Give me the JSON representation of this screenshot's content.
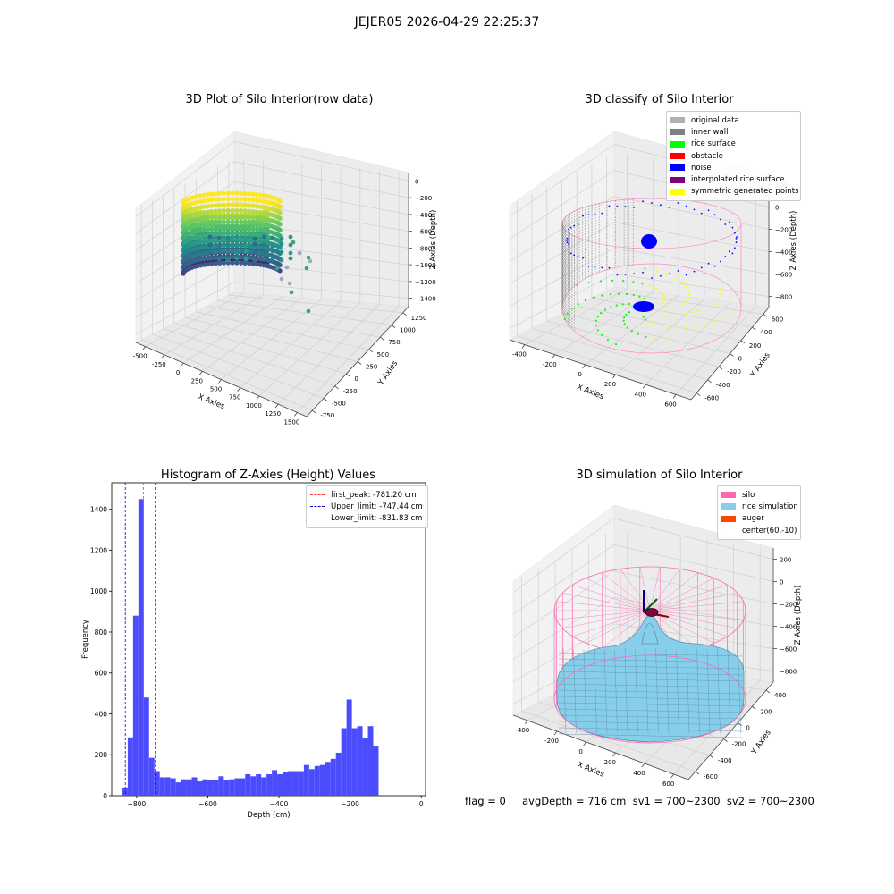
{
  "suptitle": "JEJER05 2026-04-29 22:25:37",
  "status_line": "flag = 0     avgDepth = 716 cm  sv1 = 700~2300  sv2 = 700~2300",
  "chart_data": [
    {
      "type": "scatter",
      "title": "3D Plot of Silo Interior(row data)",
      "xlabel": "X Axies",
      "ylabel": "Y Axies",
      "zlabel": "Z Axies (Depth)",
      "x_ticks": [
        "-500",
        "-250",
        "0",
        "250",
        "500",
        "750",
        "1000",
        "1250",
        "1500"
      ],
      "y_ticks": [
        "-750",
        "-500",
        "-250",
        "0",
        "250",
        "500",
        "750",
        "1000",
        "1250"
      ],
      "z_ticks": [
        "0",
        "−200",
        "−400",
        "−600",
        "−800",
        "−1000",
        "−1200",
        "−1400"
      ],
      "xlim": [
        -600,
        1500
      ],
      "ylim": [
        -750,
        1250
      ],
      "zlim": [
        -1450,
        50
      ],
      "colormap": "viridis",
      "grid": true
    },
    {
      "type": "scatter",
      "title": "3D classify of Silo Interior",
      "xlabel": "X Axies",
      "ylabel": "Y Axies",
      "zlabel": "Z Axies (Depth)",
      "x_ticks": [
        "-400",
        "-200",
        "0",
        "200",
        "400",
        "600"
      ],
      "y_ticks": [
        "-600",
        "-400",
        "-200",
        "0",
        "200",
        "400",
        "600"
      ],
      "z_ticks": [
        "200",
        "0",
        "−200",
        "−400",
        "−600",
        "−800"
      ],
      "xlim": [
        -500,
        650
      ],
      "ylim": [
        -650,
        650
      ],
      "zlim": [
        -900,
        250
      ],
      "legend_position": "top-right",
      "legend": [
        {
          "label": "original data",
          "color": "#b0b0b0"
        },
        {
          "label": "inner wall",
          "color": "#808080"
        },
        {
          "label": "rice surface",
          "color": "#00ff00"
        },
        {
          "label": "obstacle",
          "color": "#ff0000"
        },
        {
          "label": "noise",
          "color": "#0000ff"
        },
        {
          "label": "interpolated rice surface",
          "color": "#800080"
        },
        {
          "label": "symmetric generated points",
          "color": "#ffff00"
        }
      ],
      "grid": true
    },
    {
      "type": "bar",
      "title": "Histogram of Z-Axies (Height) Values",
      "xlabel": "Depth (cm)",
      "ylabel": "Frequency",
      "xlim": [
        -870,
        12
      ],
      "ylim": [
        0,
        1530
      ],
      "x_ticks": [
        -800,
        -600,
        -400,
        -200,
        0
      ],
      "y_ticks": [
        0,
        200,
        400,
        600,
        800,
        1000,
        1200,
        1400
      ],
      "bin_start": -840,
      "bin_width": 15,
      "values": [
        40,
        285,
        880,
        1450,
        480,
        185,
        120,
        90,
        90,
        85,
        65,
        80,
        80,
        90,
        70,
        80,
        75,
        75,
        95,
        75,
        80,
        85,
        85,
        105,
        95,
        105,
        90,
        105,
        125,
        105,
        115,
        120,
        120,
        120,
        150,
        130,
        145,
        150,
        165,
        180,
        210,
        330,
        470,
        330,
        340,
        280,
        340,
        240
      ],
      "bar_color": "#4c4cff",
      "lines": [
        {
          "label": "first_peak: -781.20 cm",
          "x": -781.2,
          "color": "#ff3333"
        },
        {
          "label": "Upper_limit: -747.44 cm",
          "x": -747.44,
          "color": "#0000cc"
        },
        {
          "label": "Lower_limit: -831.83 cm",
          "x": -831.83,
          "color": "#0000cc"
        }
      ],
      "legend_position": "top-right",
      "grid": false
    },
    {
      "type": "area",
      "title": "3D simulation of Silo Interior",
      "xlabel": "X Axies",
      "ylabel": "Y Axies",
      "zlabel": "Z Axies (Depth)",
      "x_ticks": [
        "-400",
        "-200",
        "0",
        "200",
        "400",
        "600"
      ],
      "y_ticks": [
        "-600",
        "-400",
        "-200",
        "0",
        "200",
        "400"
      ],
      "z_ticks": [
        "200",
        "0",
        "−200",
        "−400",
        "−600",
        "−800"
      ],
      "xlim": [
        -500,
        650
      ],
      "ylim": [
        -650,
        500
      ],
      "zlim": [
        -850,
        300
      ],
      "legend_position": "top-right",
      "legend": [
        {
          "label": "silo",
          "color": "#ff69b4"
        },
        {
          "label": "rice simulation",
          "color": "#87ceeb"
        },
        {
          "label": "auger",
          "color": "#ff4500"
        },
        {
          "label": "center(60,-10)",
          "color": ""
        }
      ],
      "grid": true
    }
  ]
}
